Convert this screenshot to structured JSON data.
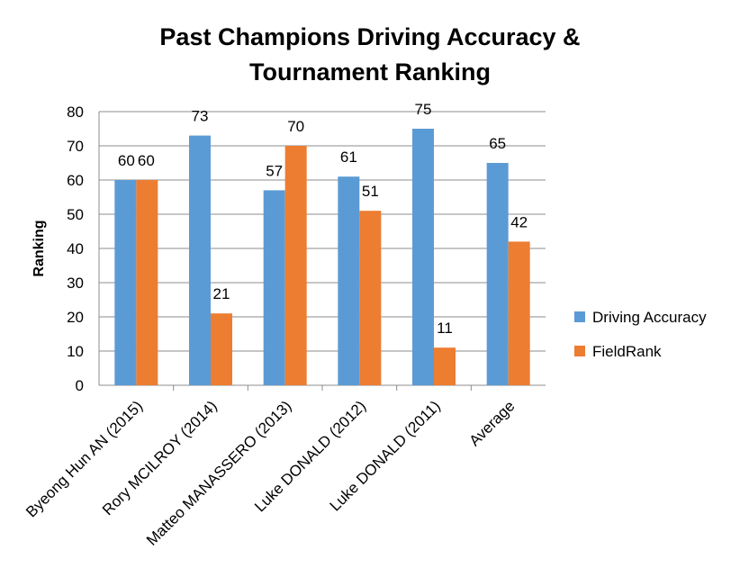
{
  "chart_data": {
    "type": "bar",
    "title": [
      "Past Champions Driving Accuracy &",
      "Tournament Ranking"
    ],
    "xlabel": "",
    "ylabel": "Ranking",
    "ylim": [
      0,
      80
    ],
    "yticks": [
      0,
      10,
      20,
      30,
      40,
      50,
      60,
      70,
      80
    ],
    "grid": true,
    "legend_position": "right",
    "categories": [
      "Byeong Hun AN (2015)",
      "Rory MCILROY (2014)",
      "Matteo MANASSERO (2013)",
      "Luke DONALD (2012)",
      "Luke DONALD (2011)",
      "Average"
    ],
    "series": [
      {
        "name": "Driving Accuracy",
        "color": "#5b9bd5",
        "values": [
          60,
          73,
          57,
          61,
          75,
          65
        ]
      },
      {
        "name": "FieldRank",
        "color": "#ed7d31",
        "values": [
          60,
          21,
          70,
          51,
          11,
          42
        ]
      }
    ]
  }
}
